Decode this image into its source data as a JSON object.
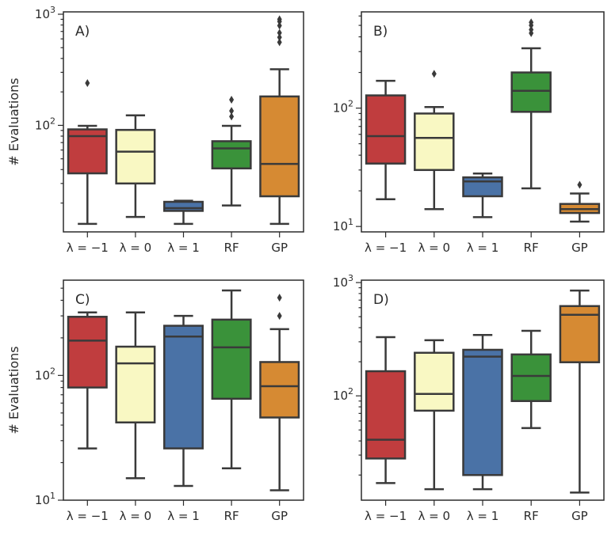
{
  "chart_data": [
    {
      "panel": "A)",
      "type": "boxplot",
      "ylabel": "# Evaluations",
      "yscale": "log",
      "ylim": [
        11,
        1050
      ],
      "yticks": [
        {
          "value": 100,
          "base": "10",
          "exp": "2"
        },
        {
          "value": 1000,
          "base": "10",
          "exp": "3"
        }
      ],
      "categories": [
        "λ = −1",
        "λ = 0",
        "λ = 1",
        "RF",
        "GP"
      ],
      "boxes": [
        {
          "label": "λ = −1",
          "color": "#c03d3e",
          "whislo": 13,
          "q1": 37,
          "med": 80,
          "q3": 92,
          "whishi": 99,
          "fliers": [
            240
          ]
        },
        {
          "label": "λ = 0",
          "color": "#f9f8c3",
          "whislo": 15,
          "q1": 30,
          "med": 58,
          "q3": 91,
          "whishi": 123,
          "fliers": []
        },
        {
          "label": "λ = 1",
          "color": "#4a72a6",
          "whislo": 13,
          "q1": 17,
          "med": 18,
          "q3": 20.5,
          "whishi": 21,
          "fliers": []
        },
        {
          "label": "RF",
          "color": "#3a923a",
          "whislo": 19,
          "q1": 41,
          "med": 62,
          "q3": 72,
          "whishi": 99,
          "fliers": [
            120,
            135,
            170
          ]
        },
        {
          "label": "GP",
          "color": "#d68a33",
          "whislo": 13,
          "q1": 23,
          "med": 45,
          "q3": 182,
          "whishi": 320,
          "fliers": [
            560,
            620,
            680,
            790,
            860,
            900
          ]
        }
      ]
    },
    {
      "panel": "B)",
      "type": "boxplot",
      "ylabel": "",
      "yscale": "log",
      "ylim": [
        9,
        650
      ],
      "yticks": [
        {
          "value": 10,
          "base": "10",
          "exp": "1"
        },
        {
          "value": 100,
          "base": "10",
          "exp": "2"
        }
      ],
      "categories": [
        "λ = −1",
        "λ = 0",
        "λ = 1",
        "RF",
        "GP"
      ],
      "boxes": [
        {
          "label": "λ = −1",
          "color": "#c03d3e",
          "whislo": 17,
          "q1": 34,
          "med": 58,
          "q3": 128,
          "whishi": 170,
          "fliers": []
        },
        {
          "label": "λ = 0",
          "color": "#f9f8c3",
          "whislo": 14,
          "q1": 30,
          "med": 56,
          "q3": 90,
          "whishi": 102,
          "fliers": [
            195
          ]
        },
        {
          "label": "λ = 1",
          "color": "#4a72a6",
          "whislo": 12,
          "q1": 18,
          "med": 24,
          "q3": 26,
          "whishi": 28,
          "fliers": []
        },
        {
          "label": "RF",
          "color": "#3a923a",
          "whislo": 21,
          "q1": 93,
          "med": 140,
          "q3": 200,
          "whishi": 320,
          "fliers": [
            430,
            460,
            500,
            530
          ]
        },
        {
          "label": "GP",
          "color": "#d68a33",
          "whislo": 11,
          "q1": 13,
          "med": 14,
          "q3": 15.5,
          "whishi": 19,
          "fliers": [
            22.5
          ]
        }
      ]
    },
    {
      "panel": "C)",
      "type": "boxplot",
      "ylabel": "# Evaluations",
      "yscale": "log",
      "ylim": [
        10,
        580
      ],
      "yticks": [
        {
          "value": 10,
          "base": "10",
          "exp": "1"
        },
        {
          "value": 100,
          "base": "10",
          "exp": "2"
        }
      ],
      "categories": [
        "λ = −1",
        "λ = 0",
        "λ = 1",
        "RF",
        "GP"
      ],
      "boxes": [
        {
          "label": "λ = −1",
          "color": "#c03d3e",
          "whislo": 26,
          "q1": 80,
          "med": 190,
          "q3": 295,
          "whishi": 320,
          "fliers": []
        },
        {
          "label": "λ = 0",
          "color": "#f9f8c3",
          "whislo": 15,
          "q1": 42,
          "med": 125,
          "q3": 170,
          "whishi": 320,
          "fliers": []
        },
        {
          "label": "λ = 1",
          "color": "#4a72a6",
          "whislo": 13,
          "q1": 26,
          "med": 205,
          "q3": 250,
          "whishi": 300,
          "fliers": []
        },
        {
          "label": "RF",
          "color": "#3a923a",
          "whislo": 18,
          "q1": 65,
          "med": 168,
          "q3": 280,
          "whishi": 480,
          "fliers": []
        },
        {
          "label": "GP",
          "color": "#d68a33",
          "whislo": 12,
          "q1": 46,
          "med": 82,
          "q3": 128,
          "whishi": 235,
          "fliers": [
            300,
            420
          ]
        }
      ]
    },
    {
      "panel": "D)",
      "type": "boxplot",
      "ylabel": "",
      "yscale": "log",
      "ylim": [
        12,
        1050
      ],
      "yticks": [
        {
          "value": 100,
          "base": "10",
          "exp": "2"
        },
        {
          "value": 1000,
          "base": "10",
          "exp": "3"
        }
      ],
      "categories": [
        "λ = −1",
        "λ = 0",
        "λ = 1",
        "RF",
        "GP"
      ],
      "boxes": [
        {
          "label": "λ = −1",
          "color": "#c03d3e",
          "whislo": 17,
          "q1": 28,
          "med": 41,
          "q3": 165,
          "whishi": 330,
          "fliers": []
        },
        {
          "label": "λ = 0",
          "color": "#f9f8c3",
          "whislo": 15,
          "q1": 74,
          "med": 104,
          "q3": 240,
          "whishi": 310,
          "fliers": []
        },
        {
          "label": "λ = 1",
          "color": "#4a72a6",
          "whislo": 15,
          "q1": 20,
          "med": 222,
          "q3": 255,
          "whishi": 345,
          "fliers": []
        },
        {
          "label": "RF",
          "color": "#3a923a",
          "whislo": 52,
          "q1": 90,
          "med": 150,
          "q3": 232,
          "whishi": 375,
          "fliers": []
        },
        {
          "label": "GP",
          "color": "#d68a33",
          "whislo": 14,
          "q1": 198,
          "med": 520,
          "q3": 620,
          "whishi": 850,
          "fliers": []
        }
      ]
    }
  ]
}
